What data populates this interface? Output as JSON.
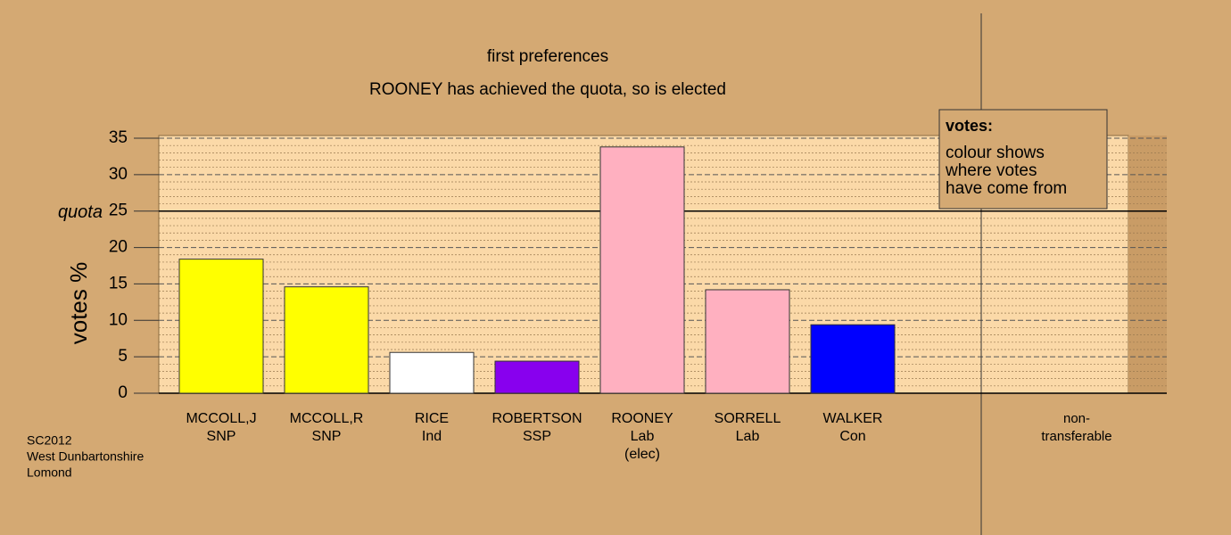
{
  "chart_data": {
    "type": "bar",
    "title": "first preferences",
    "subtitle": "ROONEY has achieved the quota, so is elected",
    "y_label": "votes %",
    "categories": [
      [
        "MCCOLL,J",
        "SNP"
      ],
      [
        "MCCOLL,R",
        "SNP"
      ],
      [
        "RICE",
        "Ind"
      ],
      [
        "ROBERTSON",
        "SSP"
      ],
      [
        "ROONEY",
        "Lab",
        "(elec)"
      ],
      [
        "SORRELL",
        "Lab"
      ],
      [
        "WALKER",
        "Con"
      ],
      [
        "non-",
        "transferable"
      ]
    ],
    "values": [
      18.4,
      14.6,
      5.6,
      4.4,
      33.8,
      14.2,
      9.4,
      0
    ],
    "colors": [
      "#ffff00",
      "#ffff00",
      "#ffffff",
      "#8800ee",
      "#ffb0c0",
      "#ffb0c0",
      "#0000ff",
      "#ffb0c0"
    ],
    "ylim": [
      0,
      35
    ],
    "yticks": [
      0,
      5,
      10,
      15,
      20,
      25,
      30,
      35
    ],
    "minor_yticks": [
      1,
      2,
      3,
      4,
      6,
      7,
      8,
      9,
      11,
      12,
      13,
      14,
      16,
      17,
      18,
      19,
      21,
      22,
      23,
      24,
      26,
      27,
      28,
      29,
      31,
      32,
      33,
      34
    ],
    "quota": {
      "value": 25,
      "label": "quota"
    },
    "legend": {
      "title": "votes:",
      "lines": [
        "colour shows",
        "where votes",
        "have come from"
      ]
    },
    "footer": [
      "SC2012",
      "West Dunbartonshire",
      "Lomond"
    ],
    "grid": true
  }
}
